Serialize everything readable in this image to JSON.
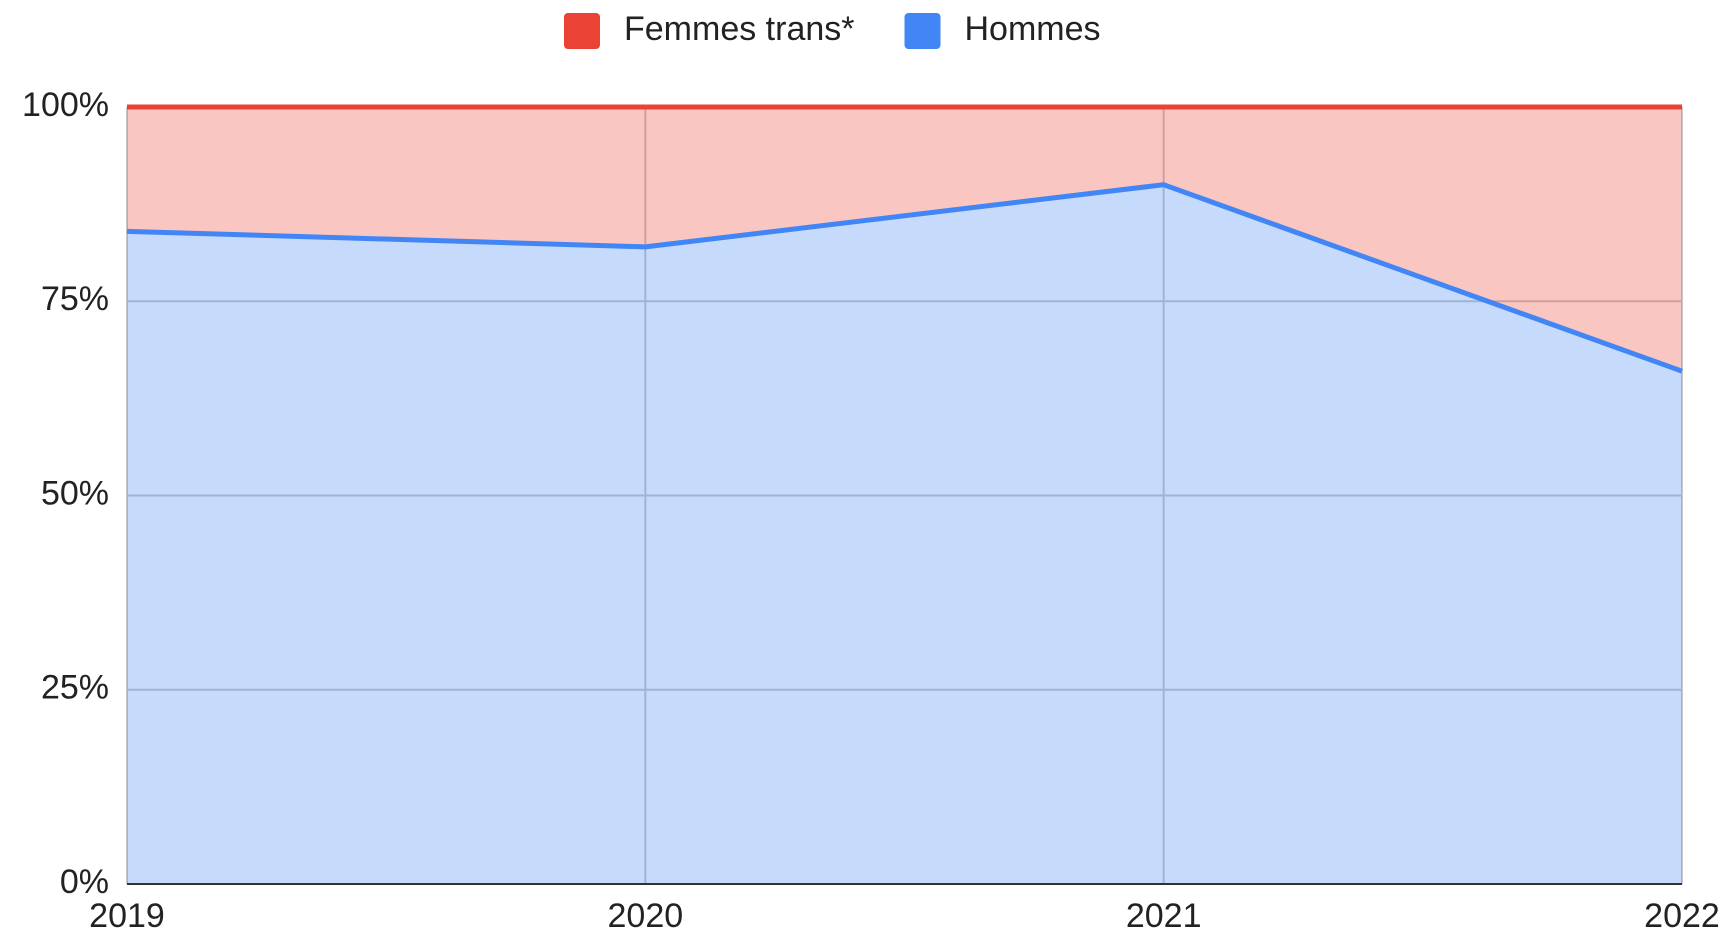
{
  "chart_data": {
    "type": "area",
    "stacked": true,
    "categories": [
      "2019",
      "2020",
      "2021",
      "2022"
    ],
    "series": [
      {
        "name": "Femmes trans*",
        "color": "#ea4335",
        "values": [
          16,
          18,
          10,
          34
        ]
      },
      {
        "name": "Hommes",
        "color": "#4285f4",
        "values": [
          84,
          82,
          90,
          66
        ]
      }
    ],
    "ylim": [
      0,
      100
    ],
    "yticks": [
      {
        "value": 0,
        "label": "0%"
      },
      {
        "value": 25,
        "label": "25%"
      },
      {
        "value": 50,
        "label": "50%"
      },
      {
        "value": 75,
        "label": "75%"
      },
      {
        "value": 100,
        "label": "100%"
      }
    ],
    "grid": true,
    "legend": "top"
  }
}
